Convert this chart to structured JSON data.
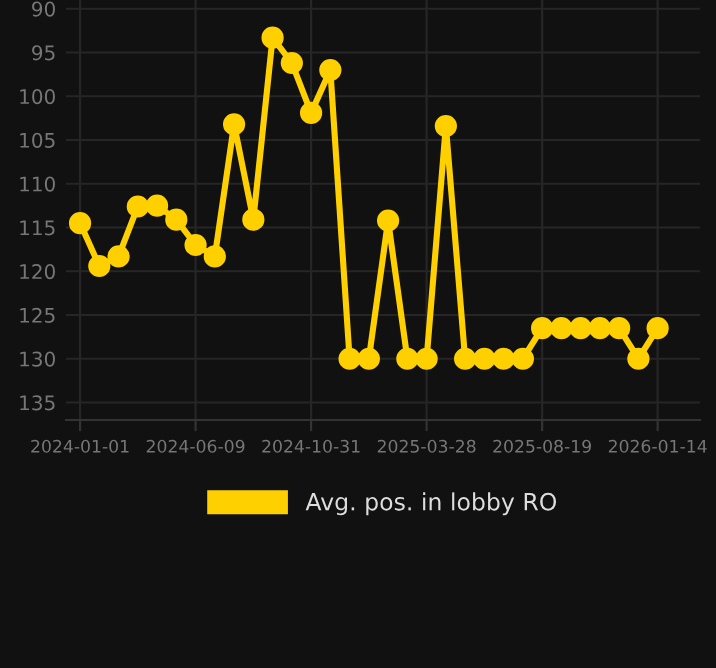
{
  "chart_data": {
    "type": "line",
    "categories": [
      "2024-01-01",
      null,
      null,
      null,
      null,
      null,
      "2024-06-09",
      null,
      null,
      null,
      null,
      null,
      "2024-10-31",
      null,
      null,
      null,
      null,
      null,
      "2025-03-28",
      null,
      null,
      null,
      null,
      null,
      "2025-08-19",
      null,
      null,
      null,
      null,
      null,
      "2026-01-14"
    ],
    "series": [
      {
        "name": "Avg. pos. in lobby RO",
        "color": "#ffd000",
        "values": [
          114.5,
          119.4,
          118.3,
          112.6,
          112.5,
          114.1,
          117.0,
          118.3,
          103.2,
          114.1,
          93.3,
          96.2,
          101.9,
          97.0,
          130,
          130,
          114.2,
          130,
          130,
          103.4,
          130,
          130,
          130,
          130,
          126.5,
          126.5,
          126.5,
          126.5,
          126.5,
          130,
          126.5
        ]
      }
    ],
    "ylim": [
      137,
      89
    ],
    "yticks": [
      90,
      95,
      100,
      105,
      110,
      115,
      120,
      125,
      130,
      135
    ],
    "grid": true,
    "legend": "bottom",
    "marker": "circle",
    "line_style": "solid"
  }
}
